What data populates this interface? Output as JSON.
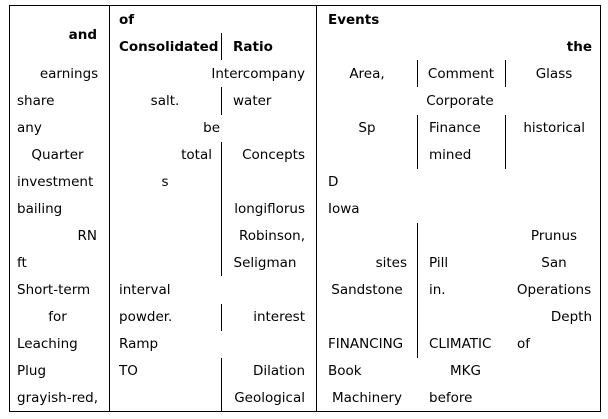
{
  "header": {
    "c0": "and",
    "c1a": "of",
    "c1b": "Consolidated",
    "c2": "Ratio",
    "c3": "Events",
    "c5": "the"
  },
  "rows": [
    [
      "earnings",
      "",
      "Intercompany",
      "Area,",
      "Comment",
      "Glass"
    ],
    [
      "share",
      "salt.",
      "water",
      "",
      "Corporate",
      ""
    ],
    [
      "any",
      "",
      "be",
      "Sp",
      "Finance",
      "historical"
    ],
    [
      "Quarter",
      "total",
      "Concepts",
      "",
      "mined",
      ""
    ],
    [
      "investment",
      "s",
      "",
      "D",
      "",
      ""
    ],
    [
      "bailing",
      "",
      "longiflorus",
      "Iowa",
      "",
      ""
    ],
    [
      "RN",
      "",
      "Robinson,",
      "",
      "",
      "Prunus"
    ],
    [
      "ft",
      "",
      "Seligman",
      "sites",
      "Pill",
      "San"
    ],
    [
      "Short-term",
      "interval",
      "",
      "Sandstone",
      "in.",
      "Operations"
    ],
    [
      "for",
      "powder.",
      "interest",
      "",
      "",
      "Depth"
    ],
    [
      "Leaching",
      "Ramp",
      "",
      "FINANCING",
      "CLIMATIC",
      "of"
    ],
    [
      "Plug",
      "TO",
      "Dilation",
      "Book",
      "MKG",
      ""
    ],
    [
      "grayish-red,",
      "",
      "Geological",
      "Machinery",
      "before",
      ""
    ]
  ]
}
